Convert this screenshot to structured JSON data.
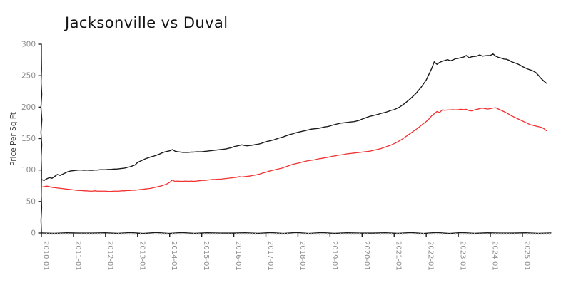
{
  "title": "Jacksonville vs Duval",
  "colors": {
    "jacksonville_line": "#1b1b1b",
    "duval_line": "#f23030",
    "axis": "#1a1a1a",
    "tick_label": "#8c8c8c",
    "minor_tick": "#bdbdbd"
  },
  "chart_data": {
    "type": "line",
    "title": "Jacksonville vs Duval",
    "xlabel": "",
    "ylabel": "Price Per Sq Ft",
    "x_start": "2010-01",
    "x_end": "2025-10",
    "x_frequency": "monthly",
    "ylim": [
      0,
      300
    ],
    "y_ticks": [
      0,
      50,
      100,
      150,
      200,
      250,
      300
    ],
    "x_tick_labels": [
      "2010-01",
      "2011-01",
      "2012-01",
      "2013-01",
      "2014-01",
      "2015-01",
      "2016-01",
      "2017-01",
      "2018-01",
      "2019-01",
      "2020-01",
      "2021-01",
      "2022-01",
      "2023-01",
      "2024-01",
      "2025-01"
    ],
    "grid": false,
    "legend_position": "none",
    "style": "hand-drawn (xkcd-like)",
    "series": [
      {
        "name": "Jacksonville",
        "color": "#1b1b1b",
        "values": [
          85,
          83.5,
          86,
          88,
          87,
          90,
          93,
          91.5,
          93.5,
          95.5,
          97.5,
          98.5,
          99,
          99.5,
          100,
          100,
          99.5,
          100,
          99.5,
          99.5,
          100,
          100,
          100.5,
          100.5,
          100.5,
          101,
          101,
          101.5,
          101.5,
          102,
          102.5,
          103,
          104,
          105,
          106.5,
          108,
          112,
          114,
          116,
          118,
          119.5,
          121,
          122,
          123.5,
          125,
          127,
          128.5,
          129.5,
          130.5,
          132.5,
          130,
          129,
          128.5,
          128,
          128,
          128,
          128.5,
          128.5,
          129,
          129,
          129,
          129.5,
          130,
          130.5,
          131,
          131.5,
          132,
          132.5,
          133,
          133.5,
          134.5,
          135.5,
          137,
          138,
          139,
          140,
          139,
          138.5,
          139,
          139.5,
          140.5,
          141,
          142,
          143.5,
          145,
          146,
          147,
          148,
          149.5,
          151,
          152,
          153.5,
          155,
          156.5,
          157.5,
          159,
          160,
          161,
          162,
          163,
          164,
          165,
          165.5,
          166,
          166.5,
          167.5,
          168.5,
          169,
          170,
          171.5,
          172.5,
          173.5,
          174.5,
          175,
          175.5,
          176,
          176.5,
          177,
          178,
          179,
          181,
          182.5,
          184,
          185.5,
          186.5,
          187.5,
          188.5,
          190,
          191,
          192,
          193.5,
          195,
          196,
          198,
          200,
          203,
          206,
          209.5,
          213,
          217,
          221,
          226,
          231,
          237,
          243,
          252,
          261,
          272,
          268,
          271,
          273,
          274,
          275.5,
          273.5,
          275,
          277,
          277.5,
          278.5,
          279.5,
          282,
          278.5,
          280,
          280.5,
          281,
          283,
          281,
          281.5,
          282,
          282,
          284.5,
          281,
          279,
          278,
          276.5,
          276,
          274.5,
          272,
          270.5,
          269,
          267,
          264.5,
          262.5,
          260.5,
          259,
          257.5,
          255,
          250.5,
          245.5,
          241.5,
          238
        ]
      },
      {
        "name": "Duval",
        "color": "#f23030",
        "values": [
          73,
          73.5,
          74.5,
          73.5,
          72.5,
          72,
          71.5,
          71,
          70.5,
          70,
          69.5,
          69,
          68.5,
          68,
          67.5,
          67.5,
          67,
          67,
          66.5,
          66.5,
          67,
          66.5,
          66.5,
          66.5,
          66.5,
          66,
          66,
          66.5,
          66.5,
          66.5,
          67,
          67,
          67.5,
          67.5,
          68,
          68,
          68.5,
          69,
          69.5,
          70,
          70.5,
          71,
          72,
          73,
          74,
          75,
          76.5,
          78,
          80.5,
          84,
          82,
          82.5,
          82,
          82,
          82.5,
          82,
          82.5,
          82,
          82.5,
          83,
          83.5,
          83.5,
          84,
          84.5,
          85,
          85,
          85.5,
          85.5,
          86,
          86.5,
          87,
          87.5,
          88,
          88.5,
          89.5,
          89,
          89.5,
          90,
          90.5,
          91.5,
          92,
          93,
          94,
          95.5,
          96.5,
          98,
          99,
          100,
          101,
          102,
          103,
          104.5,
          106,
          107.5,
          109,
          110,
          111,
          112,
          113,
          114,
          115,
          115.5,
          116,
          117,
          118,
          118.5,
          119.5,
          120,
          121,
          122,
          122.5,
          123.5,
          124,
          124.5,
          125.5,
          126,
          126.5,
          127,
          127.5,
          128,
          128.5,
          129,
          129.5,
          130,
          131,
          132,
          133,
          134,
          135.5,
          137,
          138.5,
          140,
          142,
          144,
          146.5,
          149,
          152,
          155,
          158,
          161,
          164,
          167,
          170.5,
          174,
          177,
          181,
          186,
          189.5,
          193,
          191.5,
          195.5,
          195,
          195.5,
          195.5,
          196,
          195.5,
          196,
          196.5,
          196,
          196.5,
          194.5,
          194,
          195.5,
          196.5,
          197.5,
          198.5,
          197.5,
          197,
          197.5,
          198.5,
          199,
          197,
          195,
          193,
          191,
          188.5,
          186,
          184,
          182,
          180,
          178,
          176,
          174,
          172,
          171,
          170,
          169,
          168,
          166,
          162.5
        ]
      }
    ]
  }
}
